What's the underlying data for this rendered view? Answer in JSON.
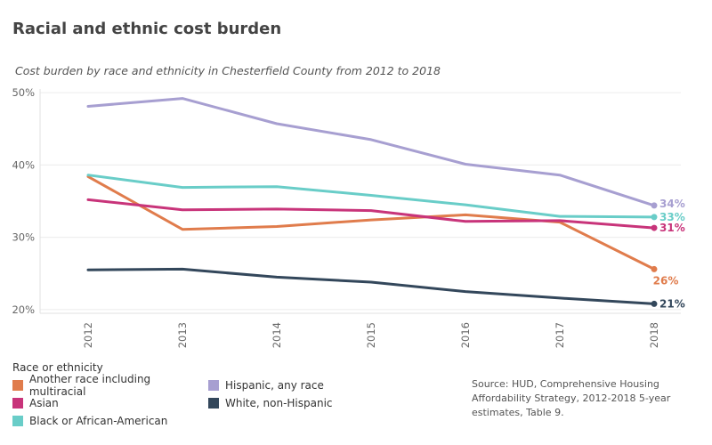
{
  "title": "Racial and ethnic cost burden",
  "subtitle": "Cost burden by race and ethnicity in Chesterfield County from 2012 to 2018",
  "legend_title": "Race or ethnicity",
  "source": "Source: HUD, Comprehensive Housing Affordability Strategy, 2012-2018 5-year estimates, Table 9.",
  "chart_data": {
    "type": "line",
    "title": "Racial and ethnic cost burden",
    "subtitle": "Cost burden by race and ethnicity in Chesterfield County from 2012 to 2018",
    "xlabel": "",
    "ylabel": "",
    "x": [
      "2012",
      "2013",
      "2014",
      "2015",
      "2016",
      "2017",
      "2018"
    ],
    "yticks": [
      20,
      30,
      40,
      50
    ],
    "ytick_labels": [
      "20%",
      "30%",
      "40%",
      "50%"
    ],
    "ylim": [
      19.5,
      50.5
    ],
    "grid": "horizontal",
    "legend_position": "bottom-left",
    "series": [
      {
        "name": "Another race including multiracial",
        "color": "#e07c4c",
        "values": [
          38.4,
          31.1,
          31.5,
          32.4,
          33.1,
          32.1,
          25.6
        ],
        "end_label": "26%"
      },
      {
        "name": "Asian",
        "color": "#c8347a",
        "values": [
          35.2,
          33.8,
          33.9,
          33.7,
          32.2,
          32.3,
          31.3
        ],
        "end_label": "31%"
      },
      {
        "name": "Black or African-American",
        "color": "#69cdc8",
        "values": [
          38.6,
          36.9,
          37.0,
          35.8,
          34.5,
          32.9,
          32.8
        ],
        "end_label": "33%"
      },
      {
        "name": "Hispanic, any race",
        "color": "#a79fd1",
        "values": [
          48.1,
          49.2,
          45.7,
          43.5,
          40.1,
          38.6,
          34.4
        ],
        "end_label": "34%"
      },
      {
        "name": "White, non-Hispanic",
        "color": "#33475b",
        "values": [
          25.5,
          25.6,
          24.5,
          23.8,
          22.5,
          21.6,
          20.8
        ],
        "end_label": "21%"
      }
    ]
  }
}
